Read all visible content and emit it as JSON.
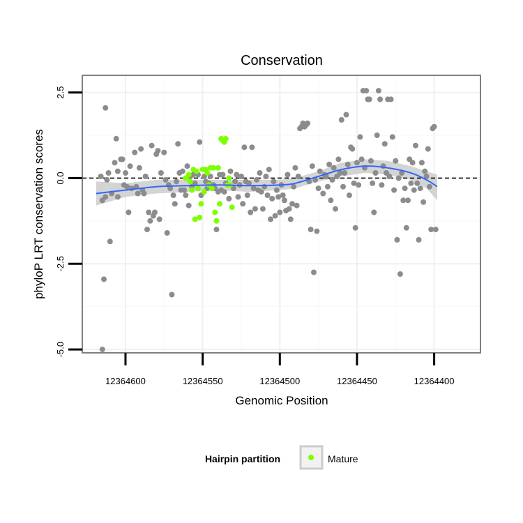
{
  "chart_data": {
    "type": "scatter",
    "title": "Conservation",
    "xlabel": "Genomic Position",
    "ylabel": "phyloP LRT conservation scores",
    "x_reversed": true,
    "xlim": [
      12364628,
      12364370
    ],
    "ylim": [
      -5.1,
      3.0
    ],
    "x_ticks": [
      12364600,
      12364550,
      12364500,
      12364450,
      12364400
    ],
    "x_tick_labels": [
      "12364600",
      "12364550",
      "12364500",
      "12364450",
      "12364400"
    ],
    "y_ticks": [
      2.5,
      0.0,
      -2.5,
      -5.0
    ],
    "y_tick_labels": [
      "2.5",
      "0.0",
      "-2.5",
      "-5.0"
    ],
    "grid": true,
    "reference_line": {
      "y": 0,
      "style": "dashed"
    },
    "legend": {
      "title": "Hairpin partition",
      "position": "bottom",
      "entries": [
        {
          "label": "Mature",
          "color": "#7fff00"
        }
      ]
    },
    "colors": {
      "background": "#fffff",
      "other": "#8c8c8c",
      "mature": "#7fff00",
      "smooth": "#3366ff",
      "ribbon": "#cccccc"
    },
    "series": [
      {
        "label_key": "other",
        "points": [
          [
            12364616,
            0.05
          ],
          [
            12364615,
            -0.65
          ],
          [
            12364613,
            -0.55
          ],
          [
            12364614,
            -2.95
          ],
          [
            12364615,
            -5.0
          ],
          [
            12364613,
            2.05
          ],
          [
            12364612,
            -0.05
          ],
          [
            12364611,
            0.15
          ],
          [
            12364610,
            -1.85
          ],
          [
            12364609,
            -0.45
          ],
          [
            12364607,
            0.45
          ],
          [
            12364606,
            1.15
          ],
          [
            12364605,
            0.2
          ],
          [
            12364605,
            -0.55
          ],
          [
            12364603,
            0.55
          ],
          [
            12364602,
            0.55
          ],
          [
            12364601,
            -0.2
          ],
          [
            12364600,
            0.15
          ],
          [
            12364599,
            -0.25
          ],
          [
            12364598,
            -1.0
          ],
          [
            12364597,
            0.35
          ],
          [
            12364596,
            -0.3
          ],
          [
            12364594,
            0.75
          ],
          [
            12364593,
            -0.25
          ],
          [
            12364592,
            -0.45
          ],
          [
            12364591,
            0.3
          ],
          [
            12364590,
            0.85
          ],
          [
            12364589,
            -0.35
          ],
          [
            12364588,
            -0.45
          ],
          [
            12364587,
            0.05
          ],
          [
            12364586,
            -1.5
          ],
          [
            12364585,
            -1.0
          ],
          [
            12364584,
            -1.25
          ],
          [
            12364583,
            0.95
          ],
          [
            12364582,
            -1.1
          ],
          [
            12364581,
            -1.0
          ],
          [
            12364580,
            0.7
          ],
          [
            12364579,
            0.8
          ],
          [
            12364578,
            -1.2
          ],
          [
            12364577,
            0.15
          ],
          [
            12364575,
            0.75
          ],
          [
            12364574,
            -0.05
          ],
          [
            12364573,
            -1.6
          ],
          [
            12364572,
            -0.2
          ],
          [
            12364571,
            -0.3
          ],
          [
            12364570,
            -3.4
          ],
          [
            12364569,
            -0.5
          ],
          [
            12364568,
            -0.75
          ],
          [
            12364567,
            -0.1
          ],
          [
            12364566,
            1.0
          ],
          [
            12364565,
            0.15
          ],
          [
            12364564,
            -0.35
          ],
          [
            12364563,
            0.2
          ],
          [
            12364562,
            -0.35
          ],
          [
            12364561,
            -0.5
          ],
          [
            12364560,
            0.35
          ],
          [
            12364559,
            -0.8
          ],
          [
            12364558,
            0.05
          ],
          [
            12364557,
            -0.25
          ],
          [
            12364556,
            0.1
          ],
          [
            12364555,
            -0.15
          ],
          [
            12364553,
            0.1
          ],
          [
            12364552,
            1.05
          ],
          [
            12364551,
            -0.5
          ],
          [
            12364549,
            0.05
          ],
          [
            12364548,
            -0.1
          ],
          [
            12364547,
            -0.3
          ],
          [
            12364546,
            -0.15
          ],
          [
            12364545,
            0.05
          ],
          [
            12364543,
            -0.2
          ],
          [
            12364542,
            -0.3
          ],
          [
            12364541,
            -1.5
          ],
          [
            12364540,
            -0.4
          ],
          [
            12364539,
            0.1
          ],
          [
            12364538,
            -0.35
          ],
          [
            12364537,
            0.1
          ],
          [
            12364536,
            -0.4
          ],
          [
            12364535,
            -0.15
          ],
          [
            12364534,
            -0.2
          ],
          [
            12364533,
            -0.6
          ],
          [
            12364532,
            0.2
          ],
          [
            12364530,
            -0.3
          ],
          [
            12364529,
            -0.1
          ],
          [
            12364528,
            0.1
          ],
          [
            12364527,
            -0.55
          ],
          [
            12364526,
            -0.2
          ],
          [
            12364525,
            0.05
          ],
          [
            12364524,
            -0.75
          ],
          [
            12364523,
            0.9
          ],
          [
            12364522,
            -0.1
          ],
          [
            12364521,
            -0.5
          ],
          [
            12364520,
            -0.15
          ],
          [
            12364519,
            -1.0
          ],
          [
            12364518,
            0.9
          ],
          [
            12364517,
            -0.3
          ],
          [
            12364516,
            -0.9
          ],
          [
            12364515,
            -0.05
          ],
          [
            12364514,
            -0.35
          ],
          [
            12364513,
            0.15
          ],
          [
            12364512,
            -0.4
          ],
          [
            12364511,
            -0.9
          ],
          [
            12364510,
            -0.25
          ],
          [
            12364509,
            0.05
          ],
          [
            12364508,
            -0.5
          ],
          [
            12364507,
            0.25
          ],
          [
            12364506,
            -1.2
          ],
          [
            12364505,
            -0.6
          ],
          [
            12364504,
            -0.1
          ],
          [
            12364503,
            -1.1
          ],
          [
            12364502,
            -0.35
          ],
          [
            12364501,
            -0.55
          ],
          [
            12364500,
            -1.0
          ],
          [
            12364499,
            -0.2
          ],
          [
            12364498,
            -0.5
          ],
          [
            12364497,
            -0.65
          ],
          [
            12364496,
            -0.95
          ],
          [
            12364495,
            0.1
          ],
          [
            12364494,
            -0.9
          ],
          [
            12364493,
            -1.2
          ],
          [
            12364492,
            -0.75
          ],
          [
            12364491,
            -0.25
          ],
          [
            12364490,
            0.3
          ],
          [
            12364489,
            -0.8
          ],
          [
            12364488,
            0.05
          ],
          [
            12364487,
            1.45
          ],
          [
            12364486,
            1.5
          ],
          [
            12364485,
            1.6
          ],
          [
            12364484,
            1.5
          ],
          [
            12364483,
            1.55
          ],
          [
            12364482,
            1.6
          ],
          [
            12364481,
            -0.1
          ],
          [
            12364480,
            -1.5
          ],
          [
            12364479,
            0.35
          ],
          [
            12364478,
            -2.75
          ],
          [
            12364477,
            -0.05
          ],
          [
            12364476,
            -1.55
          ],
          [
            12364475,
            -0.3
          ],
          [
            12364474,
            0.2
          ],
          [
            12364472,
            -0.45
          ],
          [
            12364471,
            0.1
          ],
          [
            12364470,
            0.05
          ],
          [
            12364469,
            -0.25
          ],
          [
            12364468,
            0.4
          ],
          [
            12364467,
            -0.65
          ],
          [
            12364466,
            -0.05
          ],
          [
            12364465,
            0.3
          ],
          [
            12364464,
            -0.9
          ],
          [
            12364463,
            0.05
          ],
          [
            12364462,
            0.55
          ],
          [
            12364461,
            0.15
          ],
          [
            12364460,
            1.7
          ],
          [
            12364459,
            -0.25
          ],
          [
            12364458,
            0.15
          ],
          [
            12364457,
            1.85
          ],
          [
            12364456,
            0.4
          ],
          [
            12364455,
            -0.5
          ],
          [
            12364454,
            0.9
          ],
          [
            12364453,
            0.85
          ],
          [
            12364452,
            -0.15
          ],
          [
            12364451,
            -1.45
          ],
          [
            12364450,
            0.45
          ],
          [
            12364449,
            -0.2
          ],
          [
            12364448,
            1.2
          ],
          [
            12364447,
            0.55
          ],
          [
            12364446,
            2.55
          ],
          [
            12364445,
            0.3
          ],
          [
            12364444,
            2.55
          ],
          [
            12364443,
            2.3
          ],
          [
            12364442,
            2.3
          ],
          [
            12364441,
            0.5
          ],
          [
            12364440,
            -0.15
          ],
          [
            12364439,
            -1.0
          ],
          [
            12364438,
            0.15
          ],
          [
            12364437,
            1.25
          ],
          [
            12364436,
            2.55
          ],
          [
            12364435,
            2.3
          ],
          [
            12364434,
            -0.2
          ],
          [
            12364433,
            0.35
          ],
          [
            12364432,
            1.0
          ],
          [
            12364431,
            0.15
          ],
          [
            12364430,
            2.3
          ],
          [
            12364429,
            0.05
          ],
          [
            12364428,
            2.3
          ],
          [
            12364427,
            1.2
          ],
          [
            12364426,
            -0.35
          ],
          [
            12364425,
            0.5
          ],
          [
            12364424,
            -1.8
          ],
          [
            12364423,
            0.0
          ],
          [
            12364422,
            -2.8
          ],
          [
            12364421,
            0.15
          ],
          [
            12364420,
            -0.65
          ],
          [
            12364419,
            -0.3
          ],
          [
            12364418,
            -1.45
          ],
          [
            12364417,
            -0.65
          ],
          [
            12364416,
            0.55
          ],
          [
            12364415,
            -0.15
          ],
          [
            12364414,
            0.45
          ],
          [
            12364413,
            -0.35
          ],
          [
            12364412,
            0.95
          ],
          [
            12364411,
            -0.15
          ],
          [
            12364410,
            -1.8
          ],
          [
            12364409,
            -0.3
          ],
          [
            12364408,
            0.45
          ],
          [
            12364407,
            -0.7
          ],
          [
            12364406,
            0.2
          ],
          [
            12364405,
            0.05
          ],
          [
            12364404,
            0.85
          ],
          [
            12364403,
            -0.25
          ],
          [
            12364402,
            -1.5
          ],
          [
            12364401,
            1.45
          ],
          [
            12364400,
            1.5
          ],
          [
            12364399,
            -1.5
          ]
        ]
      },
      {
        "label_key": "mature",
        "name": "Mature",
        "points": [
          [
            12364561,
            0.0
          ],
          [
            12364559,
            0.1
          ],
          [
            12364558,
            -0.1
          ],
          [
            12364557,
            -0.35
          ],
          [
            12364556,
            0.25
          ],
          [
            12364555,
            -1.2
          ],
          [
            12364554,
            0.2
          ],
          [
            12364553,
            -0.3
          ],
          [
            12364552,
            -1.15
          ],
          [
            12364551,
            -0.75
          ],
          [
            12364550,
            0.25
          ],
          [
            12364549,
            -0.4
          ],
          [
            12364548,
            0.25
          ],
          [
            12364547,
            0.15
          ],
          [
            12364546,
            -0.2
          ],
          [
            12364545,
            0.3
          ],
          [
            12364544,
            -0.3
          ],
          [
            12364543,
            0.3
          ],
          [
            12364542,
            -1.0
          ],
          [
            12364541,
            -1.25
          ],
          [
            12364540,
            0.3
          ],
          [
            12364539,
            -0.75
          ],
          [
            12364538,
            1.15
          ],
          [
            12364537,
            1.1
          ],
          [
            12364536,
            1.05
          ],
          [
            12364535,
            1.15
          ],
          [
            12364534,
            -0.2
          ],
          [
            12364533,
            0.0
          ],
          [
            12364532,
            -0.2
          ],
          [
            12364531,
            -0.85
          ]
        ]
      }
    ],
    "smooth_line": {
      "x": [
        12364619,
        12364600,
        12364580,
        12364560,
        12364540,
        12364520,
        12364500,
        12364490,
        12364475,
        12364460,
        12364445,
        12364430,
        12364415,
        12364405,
        12364398
      ],
      "y": [
        -0.45,
        -0.35,
        -0.25,
        -0.22,
        -0.2,
        -0.22,
        -0.2,
        -0.15,
        0.05,
        0.25,
        0.35,
        0.3,
        0.15,
        -0.05,
        -0.25
      ],
      "ribbon_upper": [
        -0.1,
        -0.15,
        -0.05,
        -0.05,
        -0.05,
        -0.05,
        -0.05,
        0.0,
        0.2,
        0.45,
        0.55,
        0.5,
        0.35,
        0.2,
        0.1
      ],
      "ribbon_lower": [
        -0.8,
        -0.55,
        -0.45,
        -0.4,
        -0.35,
        -0.4,
        -0.35,
        -0.3,
        -0.1,
        0.05,
        0.15,
        0.1,
        -0.05,
        -0.3,
        -0.65
      ]
    }
  }
}
